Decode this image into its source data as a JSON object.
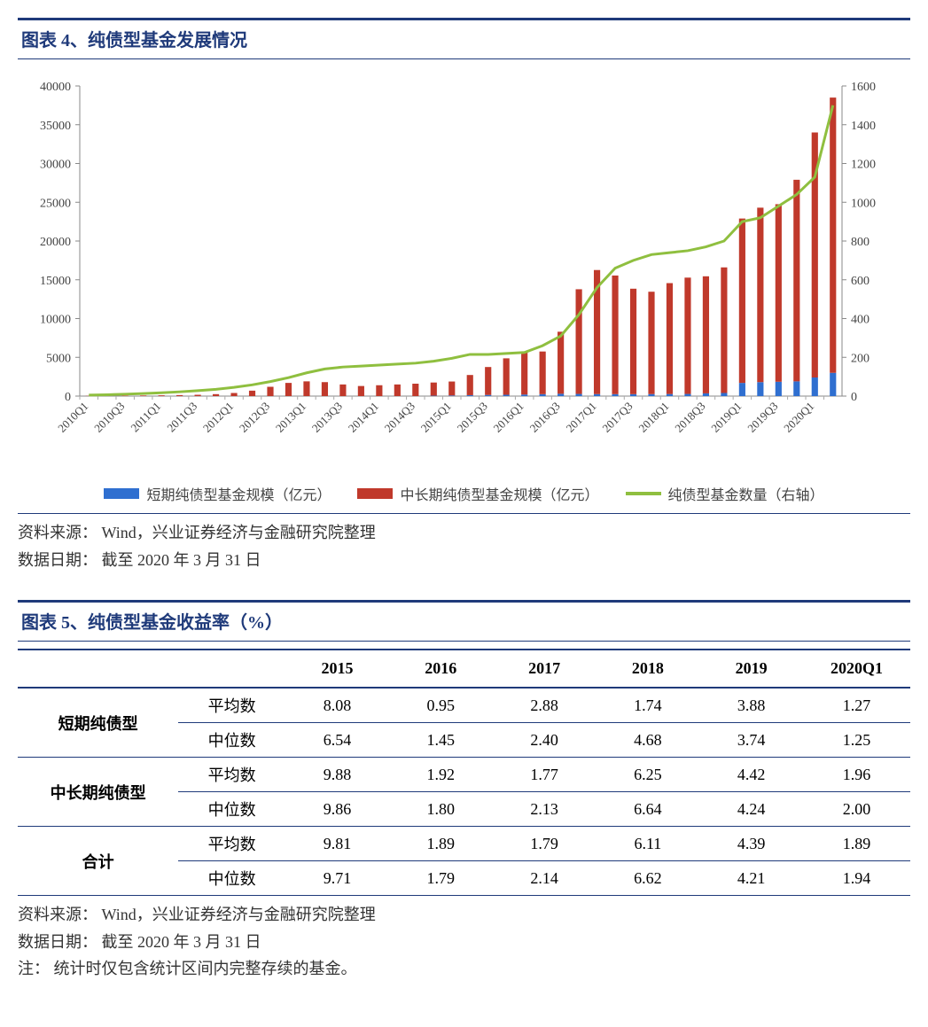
{
  "figure4": {
    "title": "图表 4、纯债型基金发展情况",
    "source_label": "资料来源：",
    "source_text": "Wind，兴业证券经济与金融研究院整理",
    "date_label": "数据日期：",
    "date_text": "截至 2020 年 3 月 31 日",
    "chart": {
      "type": "bar+line-dual-axis",
      "background_color": "#ffffff",
      "grid_color": "#d9d9d9",
      "left_axis": {
        "min": 0,
        "max": 40000,
        "step": 5000,
        "label_fontsize": 14,
        "label_color": "#444"
      },
      "right_axis": {
        "min": 0,
        "max": 1600,
        "step": 200,
        "label_fontsize": 14,
        "label_color": "#444"
      },
      "categories": [
        "2010Q1",
        "2010Q3",
        "2011Q1",
        "2011Q3",
        "2012Q1",
        "2012Q3",
        "2013Q1",
        "2013Q3",
        "2014Q1",
        "2014Q3",
        "2015Q1",
        "2015Q3",
        "2016Q1",
        "2016Q3",
        "2017Q1",
        "2017Q3",
        "2018Q1",
        "2018Q3",
        "2019Q1",
        "2019Q3",
        "2020Q1"
      ],
      "x_label_rotation": -45,
      "bar_width_ratio": 0.35,
      "series_short": {
        "name": "短期纯债型基金规模（亿元）",
        "axis": "left",
        "color": "#2f6fd0",
        "values_per_q": [
          0,
          0,
          0,
          0,
          0,
          0,
          0,
          0,
          0,
          0,
          0,
          0,
          0,
          0,
          0,
          0,
          0,
          0,
          0,
          50,
          80,
          120,
          150,
          170,
          200,
          250,
          300,
          280,
          260,
          250,
          250,
          260,
          270,
          280,
          350,
          400,
          1700,
          1800,
          1850,
          1900,
          2400,
          3000
        ]
      },
      "series_long": {
        "name": "中长期纯债型基金规模（亿元）",
        "axis": "left",
        "color": "#c0392b",
        "values_per_q": [
          30,
          40,
          60,
          80,
          100,
          130,
          170,
          250,
          400,
          700,
          1200,
          1700,
          1900,
          1800,
          1500,
          1300,
          1400,
          1500,
          1600,
          1700,
          1800,
          2600,
          3600,
          4700,
          5400,
          5500,
          8000,
          13500,
          16000,
          15300,
          13600,
          13200,
          14300,
          15000,
          15100,
          16200,
          21200,
          22500,
          22900,
          26000,
          31600,
          35500
        ]
      },
      "series_count": {
        "name": "纯债型基金数量（右轴）",
        "axis": "right",
        "color": "#8fbf3f",
        "line_width": 3,
        "values_per_q": [
          5,
          7,
          10,
          13,
          17,
          22,
          28,
          35,
          45,
          58,
          75,
          95,
          120,
          140,
          150,
          155,
          160,
          165,
          170,
          180,
          195,
          215,
          215,
          220,
          225,
          260,
          310,
          420,
          560,
          660,
          700,
          730,
          740,
          750,
          770,
          800,
          900,
          920,
          980,
          1040,
          1130,
          1500
        ]
      },
      "legend_font_size": 16
    }
  },
  "figure5": {
    "title": "图表 5、纯债型基金收益率（%）",
    "source_label": "资料来源：",
    "source_text": "Wind，兴业证券经济与金融研究院整理",
    "date_label": "数据日期：",
    "date_text": "截至 2020 年 3 月 31 日",
    "note_label": "注：",
    "note_text": "统计时仅包含统计区间内完整存续的基金。",
    "table": {
      "header_rule_color": "#1f3a7a",
      "header_font_weight": "bold",
      "columns": [
        "",
        "",
        "2015",
        "2016",
        "2017",
        "2018",
        "2019",
        "2020Q1"
      ],
      "col_widths_pct": [
        18,
        12,
        11.6,
        11.6,
        11.6,
        11.6,
        11.6,
        12
      ],
      "row_groups": [
        {
          "label": "短期纯债型",
          "rows": [
            {
              "metric": "平均数",
              "values": [
                "8.08",
                "0.95",
                "2.88",
                "1.74",
                "3.88",
                "1.27"
              ]
            },
            {
              "metric": "中位数",
              "values": [
                "6.54",
                "1.45",
                "2.40",
                "4.68",
                "3.74",
                "1.25"
              ]
            }
          ]
        },
        {
          "label": "中长期纯债型",
          "rows": [
            {
              "metric": "平均数",
              "values": [
                "9.88",
                "1.92",
                "1.77",
                "6.25",
                "4.42",
                "1.96"
              ]
            },
            {
              "metric": "中位数",
              "values": [
                "9.86",
                "1.80",
                "2.13",
                "6.64",
                "4.24",
                "2.00"
              ]
            }
          ]
        },
        {
          "label": "合计",
          "rows": [
            {
              "metric": "平均数",
              "values": [
                "9.81",
                "1.89",
                "1.79",
                "6.11",
                "4.39",
                "1.89"
              ]
            },
            {
              "metric": "中位数",
              "values": [
                "9.71",
                "1.79",
                "2.14",
                "6.62",
                "4.21",
                "1.94"
              ]
            }
          ]
        }
      ]
    }
  }
}
